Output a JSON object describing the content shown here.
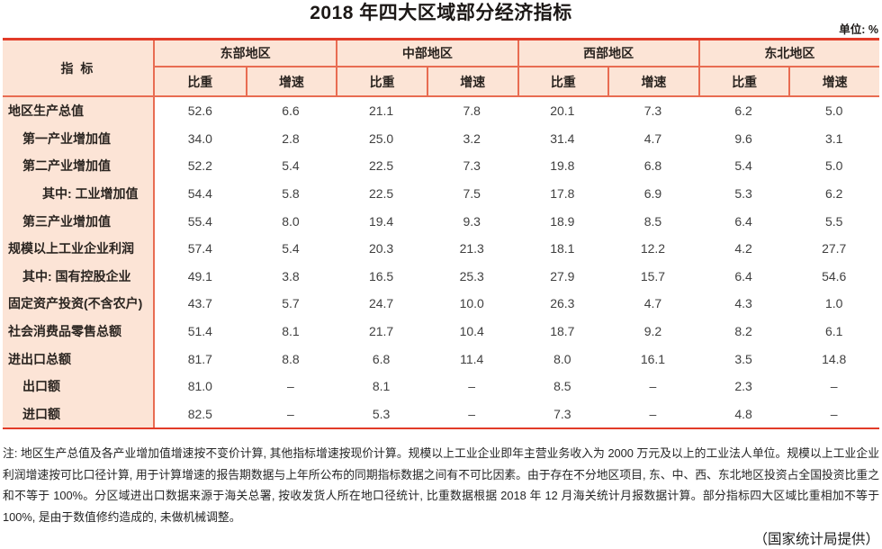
{
  "title": "2018 年四大区域部分经济指标",
  "unit_label": "单位: %",
  "table": {
    "indicator_header": "指  标",
    "regions": [
      "东部地区",
      "中部地区",
      "西部地区",
      "东北地区"
    ],
    "subheaders": [
      "比重",
      "增速"
    ],
    "rows": [
      {
        "label": "地区生产总值",
        "indent": 0,
        "values": [
          "52.6",
          "6.6",
          "21.1",
          "7.8",
          "20.1",
          "7.3",
          "6.2",
          "5.0"
        ]
      },
      {
        "label": "第一产业增加值",
        "indent": 1,
        "values": [
          "34.0",
          "2.8",
          "25.0",
          "3.2",
          "31.4",
          "4.7",
          "9.6",
          "3.1"
        ]
      },
      {
        "label": "第二产业增加值",
        "indent": 1,
        "values": [
          "52.2",
          "5.4",
          "22.5",
          "7.3",
          "19.8",
          "6.8",
          "5.4",
          "5.0"
        ]
      },
      {
        "label": "其中: 工业增加值",
        "indent": 2,
        "values": [
          "54.4",
          "5.8",
          "22.5",
          "7.5",
          "17.8",
          "6.9",
          "5.3",
          "6.2"
        ]
      },
      {
        "label": "第三产业增加值",
        "indent": 1,
        "values": [
          "55.4",
          "8.0",
          "19.4",
          "9.3",
          "18.9",
          "8.5",
          "6.4",
          "5.5"
        ]
      },
      {
        "label": "规模以上工业企业利润",
        "indent": 0,
        "values": [
          "57.4",
          "5.4",
          "20.3",
          "21.3",
          "18.1",
          "12.2",
          "4.2",
          "27.7"
        ]
      },
      {
        "label": "其中: 国有控股企业",
        "indent": 1,
        "values": [
          "49.1",
          "3.8",
          "16.5",
          "25.3",
          "27.9",
          "15.7",
          "6.4",
          "54.6"
        ]
      },
      {
        "label": "固定资产投资(不含农户)",
        "indent": 0,
        "values": [
          "43.7",
          "5.7",
          "24.7",
          "10.0",
          "26.3",
          "4.7",
          "4.3",
          "1.0"
        ]
      },
      {
        "label": "社会消费品零售总额",
        "indent": 0,
        "values": [
          "51.4",
          "8.1",
          "21.7",
          "10.4",
          "18.7",
          "9.2",
          "8.2",
          "6.1"
        ]
      },
      {
        "label": "进出口总额",
        "indent": 0,
        "values": [
          "81.7",
          "8.8",
          "6.8",
          "11.4",
          "8.0",
          "16.1",
          "3.5",
          "14.8"
        ]
      },
      {
        "label": "出口额",
        "indent": 1,
        "values": [
          "81.0",
          "–",
          "8.1",
          "–",
          "8.5",
          "–",
          "2.3",
          "–"
        ]
      },
      {
        "label": "进口额",
        "indent": 1,
        "values": [
          "82.5",
          "–",
          "5.3",
          "–",
          "7.3",
          "–",
          "4.8",
          "–"
        ]
      }
    ]
  },
  "note": "注: 地区生产总值及各产业增加值增速按不变价计算, 其他指标增速按现价计算。规模以上工业企业即年主营业务收入为 2000 万元及以上的工业法人单位。规模以上工业企业利润增速按可比口径计算, 用于计算增速的报告期数据与上年所公布的同期指标数据之间有不可比因素。由于存在不分地区项目, 东、中、西、东北地区投资占全国投资比重之和不等于 100%。分区域进出口数据来源于海关总署, 按收发货人所在地口径统计, 比重数据根据 2018 年 12 月海关统计月报数据计算。部分指标四大区域比重相加不等于 100%, 是由于数值修约造成的, 未做机械调整。",
  "attribution": "（国家统计局提供）",
  "colors": {
    "rule_red": "#e23b28",
    "cell_border_salmon": "#e86c52",
    "header_pink": "#fce4d6"
  }
}
